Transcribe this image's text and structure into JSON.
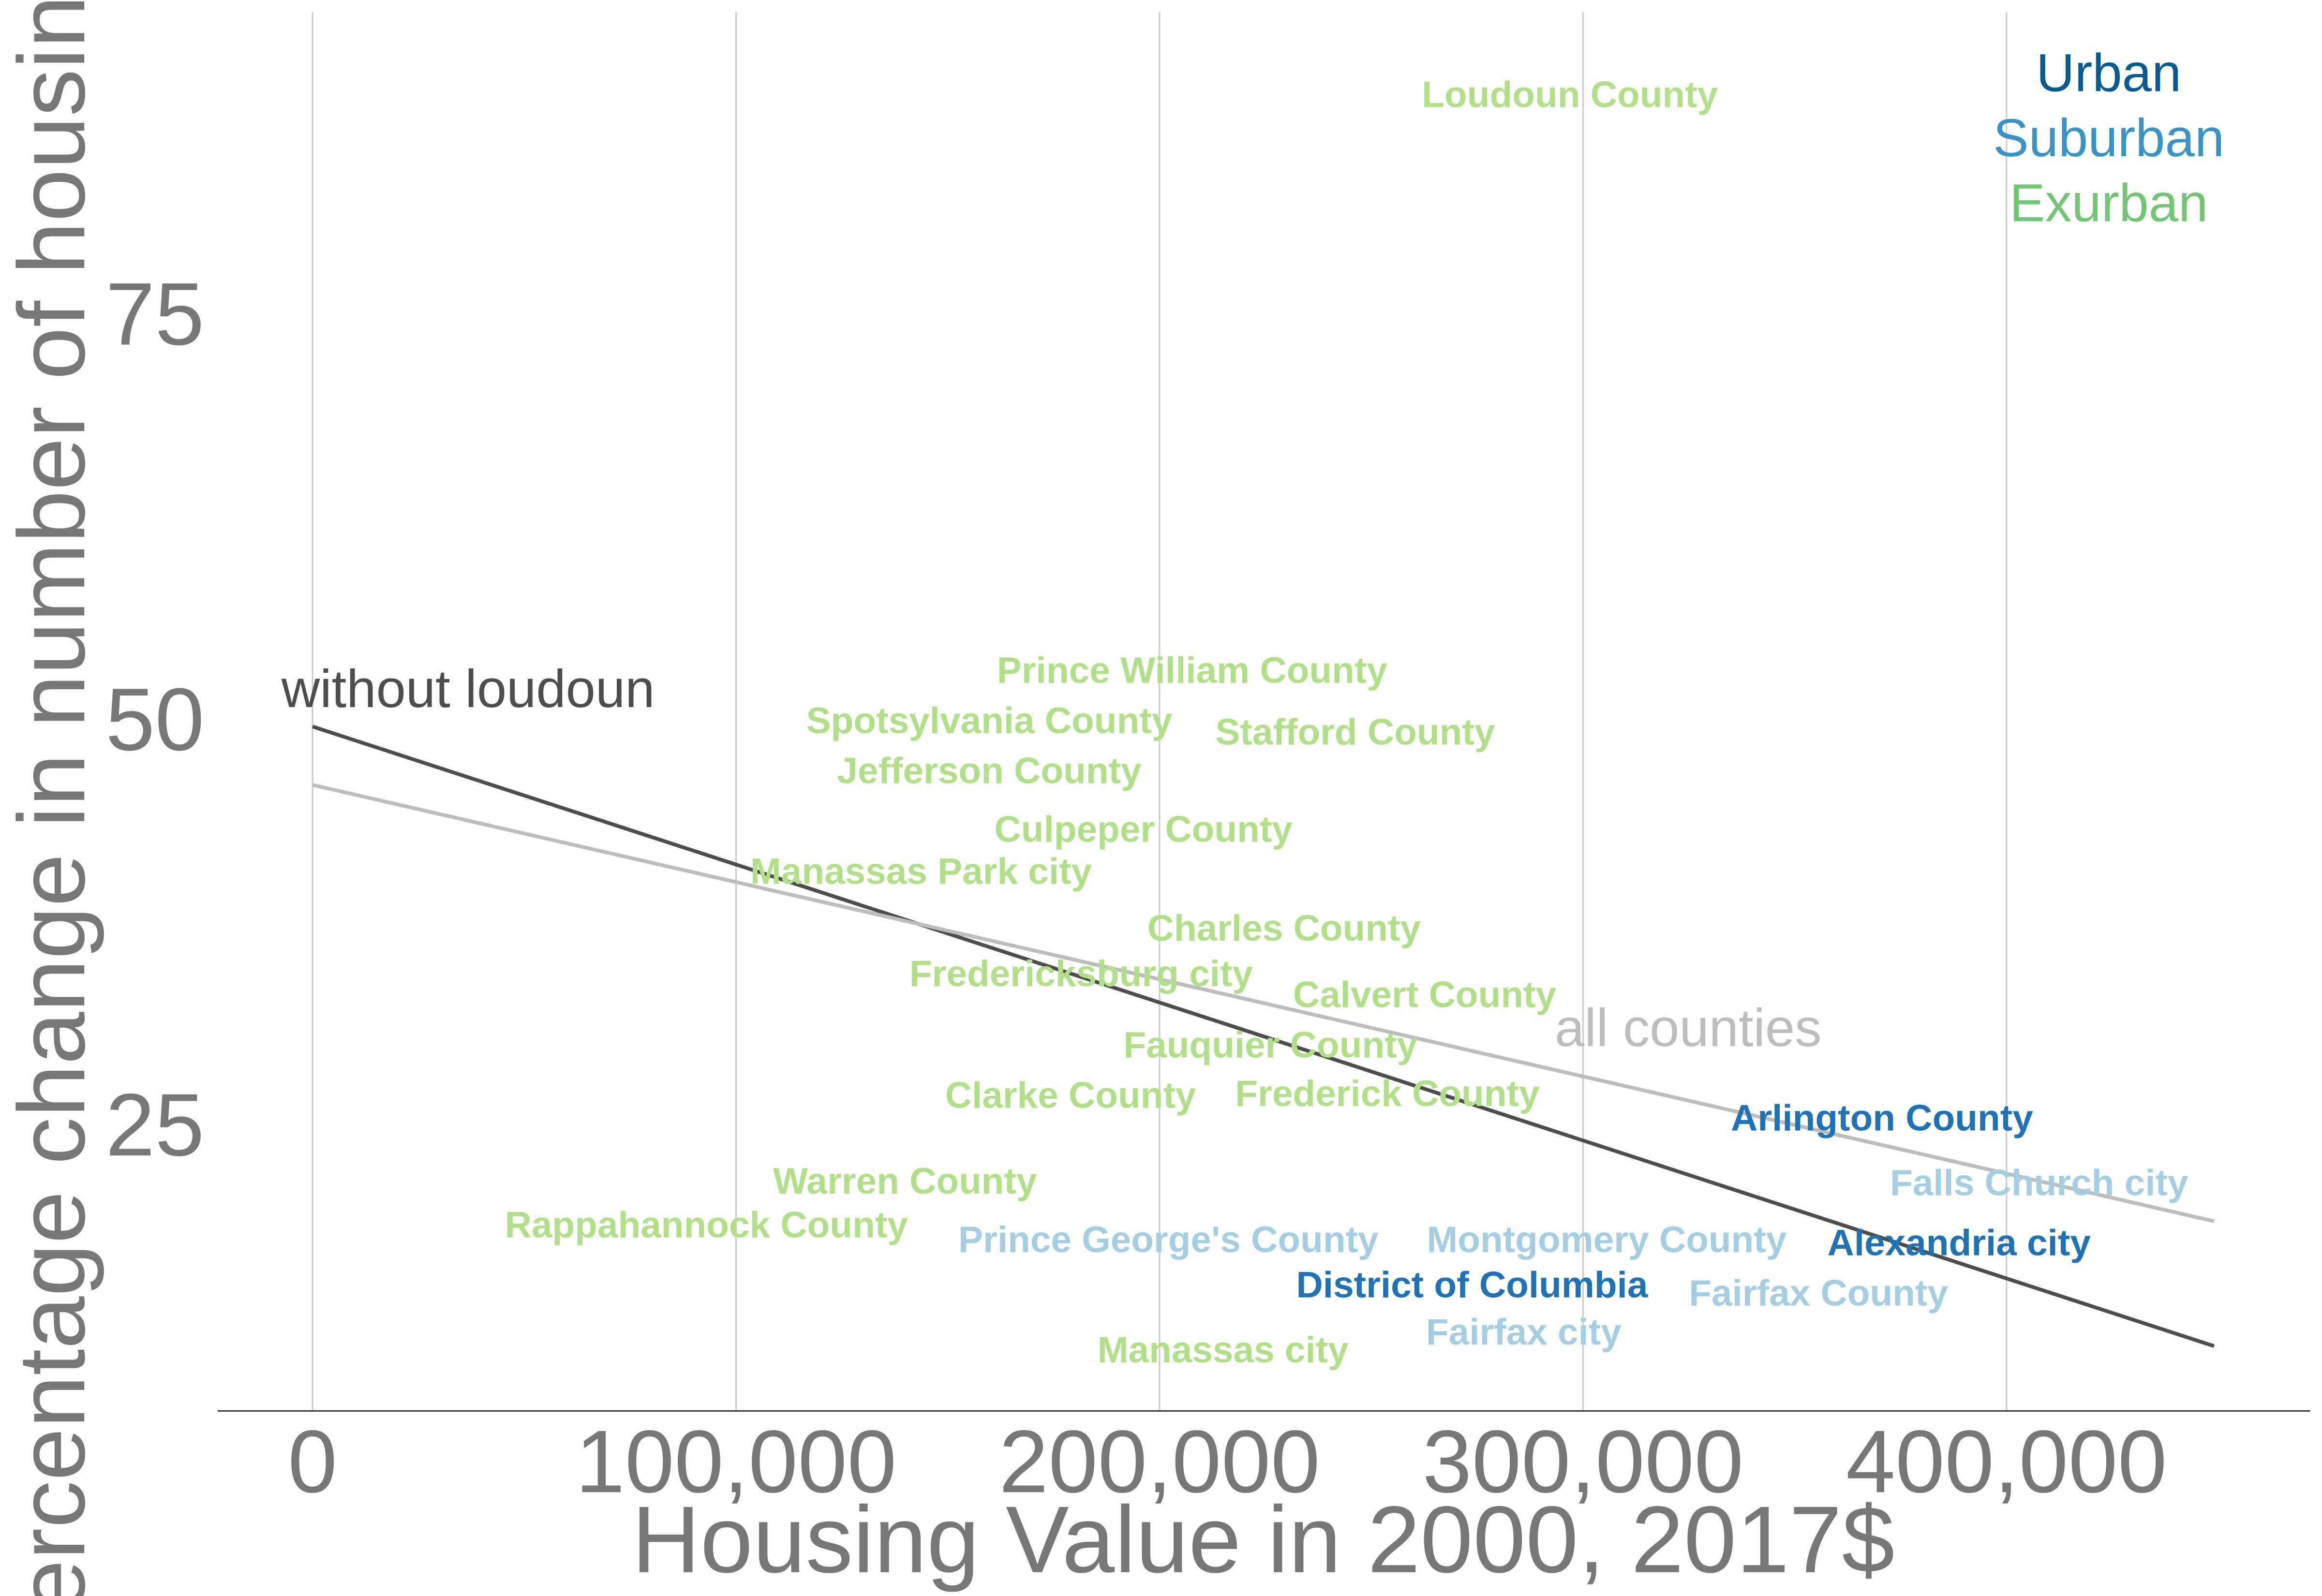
{
  "chart_data": {
    "type": "scatter",
    "xlabel": "Housing Value in 2000, 2017$",
    "ylabel": "Percentage change in number of housing units",
    "xlim": [
      -22400,
      471700
    ],
    "ylim": [
      7.8,
      94.8
    ],
    "xticks": [
      0,
      {
        "value": 100000,
        "label": "100,000"
      },
      {
        "value": 200000,
        "label": "200,000"
      },
      {
        "value": 300000,
        "label": "300,000"
      },
      {
        "value": 400000,
        "label": "400,000"
      }
    ],
    "yticks": [
      25,
      50,
      75
    ],
    "grid": "x",
    "legend": "top-right",
    "series": [
      {
        "name": "Urban",
        "color": "#2171b5",
        "legend_color": "#0b5a8e",
        "labels": [
          "Arlington County",
          "Alexandria city",
          "District of Columbia"
        ],
        "x": [
          370600,
          388800,
          273800
        ],
        "values": [
          25.7,
          18.0,
          15.4
        ]
      },
      {
        "name": "Suburban",
        "color": "#a6cee3",
        "legend_color": "#3a93c3",
        "labels": [
          "Falls Church city",
          "Prince George's County",
          "Montgomery County",
          "Fairfax County",
          "Fairfax city"
        ],
        "x": [
          407700,
          202100,
          305600,
          355600,
          286000
        ],
        "values": [
          21.7,
          18.2,
          18.2,
          14.9,
          12.5
        ]
      },
      {
        "name": "Exurban",
        "color": "#b2df8a",
        "legend_color": "#74c476",
        "labels": [
          "Loudoun County",
          "Prince William County",
          "Spotsylvania County",
          "Stafford County",
          "Jefferson County",
          "Culpeper County",
          "Manassas Park city",
          "Charles County",
          "Fredericksburg city",
          "Calvert County",
          "Fauquier County",
          "Clarke County",
          "Frederick County",
          "Warren County",
          "Rappahannock County",
          "Manassas city"
        ],
        "x": [
          296900,
          207700,
          159800,
          246200,
          159800,
          196200,
          143700,
          229400,
          181500,
          262600,
          226200,
          179000,
          253800,
          139900,
          93000,
          215000
        ],
        "values": [
          88.8,
          53.3,
          50.2,
          49.5,
          47.1,
          43.5,
          40.9,
          37.4,
          34.6,
          33.3,
          30.2,
          27.1,
          27.2,
          21.8,
          19.1,
          11.4
        ]
      }
    ],
    "lines": [
      {
        "name": "without loudoun",
        "color": "#4d4d4d",
        "x": [
          0,
          449000
        ],
        "values": [
          50.0,
          11.8
        ]
      },
      {
        "name": "all counties",
        "color": "#bdbdbd",
        "x": [
          0,
          449000
        ],
        "values": [
          46.4,
          19.5
        ]
      }
    ]
  }
}
